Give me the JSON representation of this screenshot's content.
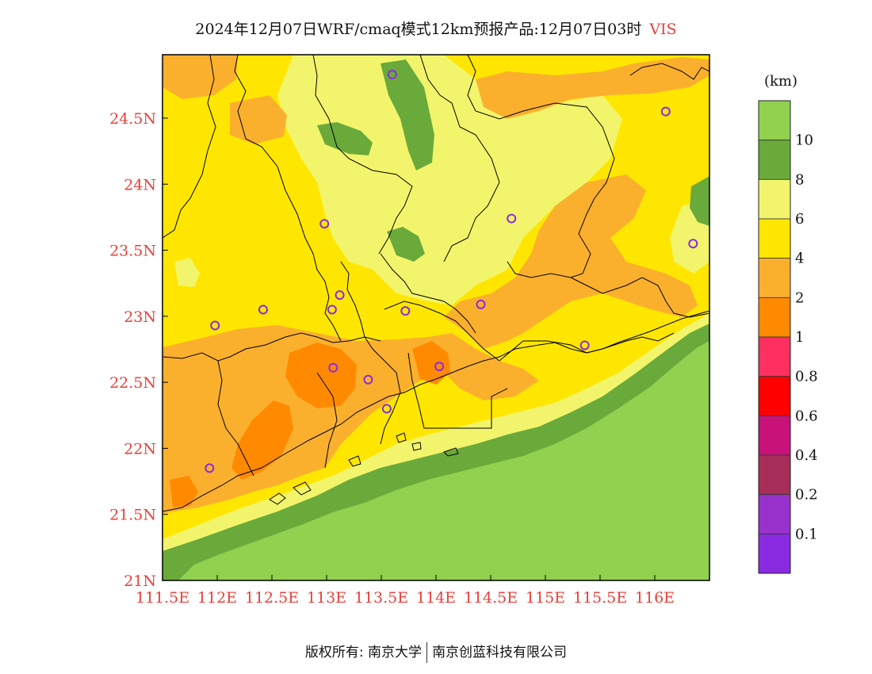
{
  "title": {
    "main": "2024年12月07日WRF/cmaq模式12km预报产品:12月07日03时",
    "variable": "VIS"
  },
  "axes": {
    "x_labels": [
      "111.5E",
      "112E",
      "112.5E",
      "113E",
      "113.5E",
      "114E",
      "114.5E",
      "115E",
      "115.5E",
      "116E"
    ],
    "y_labels": [
      "21N",
      "21.5N",
      "22N",
      "22.5N",
      "23N",
      "23.5N",
      "24N",
      "24.5N"
    ],
    "lon_range": [
      111.5,
      116.5
    ],
    "lat_range": [
      21.0,
      24.98
    ],
    "label_color": "#e8403a"
  },
  "legend": {
    "unit": "(km)",
    "tick_labels": [
      "10",
      "8",
      "6",
      "4",
      "2",
      "1",
      "0.8",
      "0.6",
      "0.4",
      "0.2",
      "0.1"
    ],
    "bins_top_to_bottom": [
      {
        "range": ">10",
        "color": "#92d050"
      },
      {
        "range": "8-10",
        "color": "#6aaa3a"
      },
      {
        "range": "6-8",
        "color": "#f2f56b"
      },
      {
        "range": "4-6",
        "color": "#ffe600"
      },
      {
        "range": "2-4",
        "color": "#fbb02d"
      },
      {
        "range": "1-2",
        "color": "#ff8a00"
      },
      {
        "range": "0.8-1",
        "color": "#ff2f5f"
      },
      {
        "range": "0.6-0.8",
        "color": "#ff0000"
      },
      {
        "range": "0.4-0.6",
        "color": "#c8127a"
      },
      {
        "range": "0.2-0.4",
        "color": "#a82e5a"
      },
      {
        "range": "0.1-0.2",
        "color": "#9932cc"
      },
      {
        "range": "<0.1",
        "color": "#8a2be2"
      }
    ]
  },
  "stations": [
    {
      "lon": 113.6,
      "lat": 24.83
    },
    {
      "lon": 116.1,
      "lat": 24.55
    },
    {
      "lon": 112.98,
      "lat": 23.7
    },
    {
      "lon": 114.69,
      "lat": 23.74
    },
    {
      "lon": 116.35,
      "lat": 23.55
    },
    {
      "lon": 113.12,
      "lat": 23.16
    },
    {
      "lon": 112.42,
      "lat": 23.05
    },
    {
      "lon": 113.05,
      "lat": 23.05
    },
    {
      "lon": 113.72,
      "lat": 23.04
    },
    {
      "lon": 114.41,
      "lat": 23.09
    },
    {
      "lon": 111.98,
      "lat": 22.93
    },
    {
      "lon": 115.36,
      "lat": 22.78
    },
    {
      "lon": 113.06,
      "lat": 22.61
    },
    {
      "lon": 114.03,
      "lat": 22.62
    },
    {
      "lon": 113.38,
      "lat": 22.52
    },
    {
      "lon": 113.55,
      "lat": 22.3
    },
    {
      "lon": 111.93,
      "lat": 21.85
    }
  ],
  "footer": {
    "left": "版权所有: 南京大学",
    "right": "南京创蓝科技有限公司"
  }
}
